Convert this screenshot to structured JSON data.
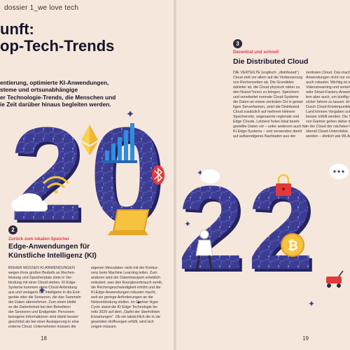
{
  "header": {
    "label": "dossier 1_we love tech"
  },
  "headline": "unft:\nop-Tech-Trends",
  "intro": "entierung, optimierte KI-Anwendungen,\nsteme und ortsunabhängige\ner Technologie-Trends, die Menschen und\nie Zeit darüber hinaus begleiten werden.",
  "illustration": {
    "digits": [
      "2",
      "0",
      "2",
      "2"
    ]
  },
  "section3": {
    "number": "3",
    "kicker": "Dezentral und schnell",
    "title": "Die Distributed Cloud",
    "col1": "DIE VERTEILTE (englisch: „distributed“)\nCloud zielt vor allem auf die Verbesserung\nvon Rechenzeiten ab. Die Grundidee\ndahinter ist, die Cloud physisch näher zu\nden Nutzer*innen zu bringen. Speichern\nund verarbeitet normale Cloud-Systeme\ndie Daten an einem zentralen Ort in gewal-\ntigen Serverfarmen, setzt die Distributed\nCloud zusätzlich auf mehrere kleinere\nSpeicherorte, sogenannte regionale und\nEdge Clouds. Letztere holen lokal bereit-\ngestellte Daten vor – unter anderem auch für\nKI-Edge-Systeme – und verwenden damit\nauf aufwendigeres Nachladen aus der",
    "col2": "zentralen Cloud. Das macht\nAnwendungen nicht nur schn\nauch robuster. Wichtig ist da\nVideostreaming und verteilte\noder Smart-Factory-Anwendu\nlem aber auch, um künftig we\nsicher fahren zu lassen. En\nDurch Cloud-Knotenpunkte\nLand können Vorgaben zum\nbesser erfüllt werden. Die IT\nvon Gartner gehen daher da\nin der Cloud der nächsten G\nüberall Cloud-Unterstütze\nwerden – ähnlich wie WLAN"
  },
  "section2": {
    "number": "2",
    "kicker": "Zurück zum lokalen Speicher",
    "title": "Edge-Anwendungen für\nKünstliche Intelligenz (KI)",
    "col1": "BISHER MÜSSEN KI-ANWENDUNGEN\nwegen ihres großen Bedarfs an Rechen-\nleistung und Speicherplatz stets in Ver-\nbindung mit einer Cloud stehen. KI-Edge-\nSysteme kommen ohne Cloud-Anbindung\naus und verlagern die Intelligenz in die End-\ngeräte oder die Sensoren, die das Sammeln\nder Daten übernehmen. Zum einen bleibt\nso die Datenhoheit bei den Betreibern\nder Sensoren und Endgeräte: Personen-\nbezogene Informationen sind damit besser\ngeschützt als bei einer Auslagerung in eine\nexterne Cloud. Unternehmen müssen die",
    "col2": "eigenen Messdaten nicht mit der Konkur-\nrenz beim Machine Learning teilen. Zum\nanderen wird der Datentransport erheblich\nreduziert, was den Energieverbrauch senkt,\ndie Rechengeschwindigkeit erhöht und die\nKI-Edge-Anwendungen robuster macht,\nweil sie geringe Anforderungen an die\nNetzverbindung stellen. Im Gartner Hype\nCycle stand die KI-Edge-Technologie be-\nreits 2020 auf dem „Gipfel der überhöhten\nErwartungen“. Ob sie tatsächlich die in sie\ngesetzten Hoffnungen erfüllt, wird sich\nzeigen müssen."
  },
  "footer": {
    "left_page": "18",
    "right_page": "19"
  },
  "colors": {
    "background": "#f6e7dc",
    "digit_fill": "#3b3c92",
    "digit_dark": "#24245e",
    "accent_red": "#d83a4a",
    "accent_yellow": "#f2c33c"
  }
}
